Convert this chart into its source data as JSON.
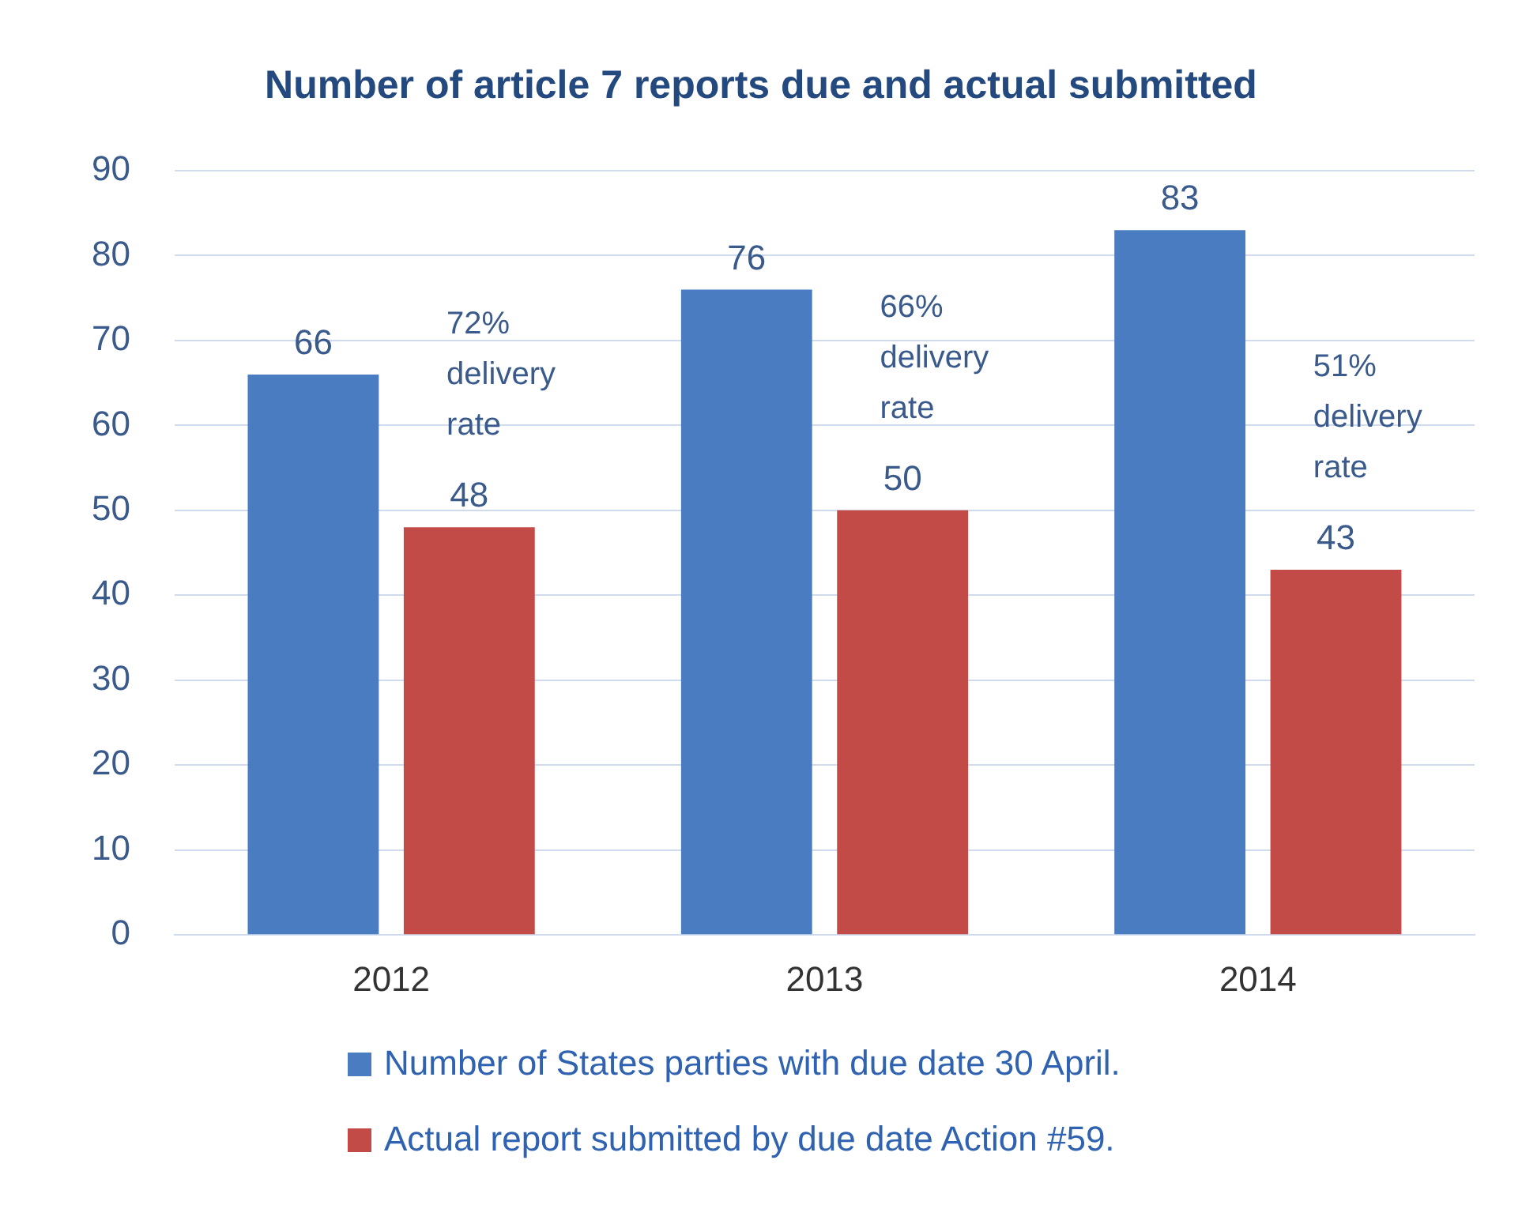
{
  "chart_data": {
    "type": "bar",
    "title": "Number of article 7 reports due and actual submitted",
    "categories": [
      "2012",
      "2013",
      "2014"
    ],
    "series": [
      {
        "name": "Number of States parties with due date 30 April.",
        "color": "#4a7cc1",
        "values": [
          66,
          76,
          83
        ]
      },
      {
        "name": "Actual report submitted by due date Action #59.",
        "color": "#c24a47",
        "values": [
          48,
          50,
          43
        ]
      }
    ],
    "ylim": [
      0,
      90
    ],
    "yticks": [
      0,
      10,
      20,
      30,
      40,
      50,
      60,
      70,
      80,
      90
    ],
    "grid": "y",
    "legend": "bottom",
    "data_labels": true,
    "annotations": [
      "72% delivery rate",
      "66% delivery rate",
      "51% delivery rate"
    ]
  }
}
